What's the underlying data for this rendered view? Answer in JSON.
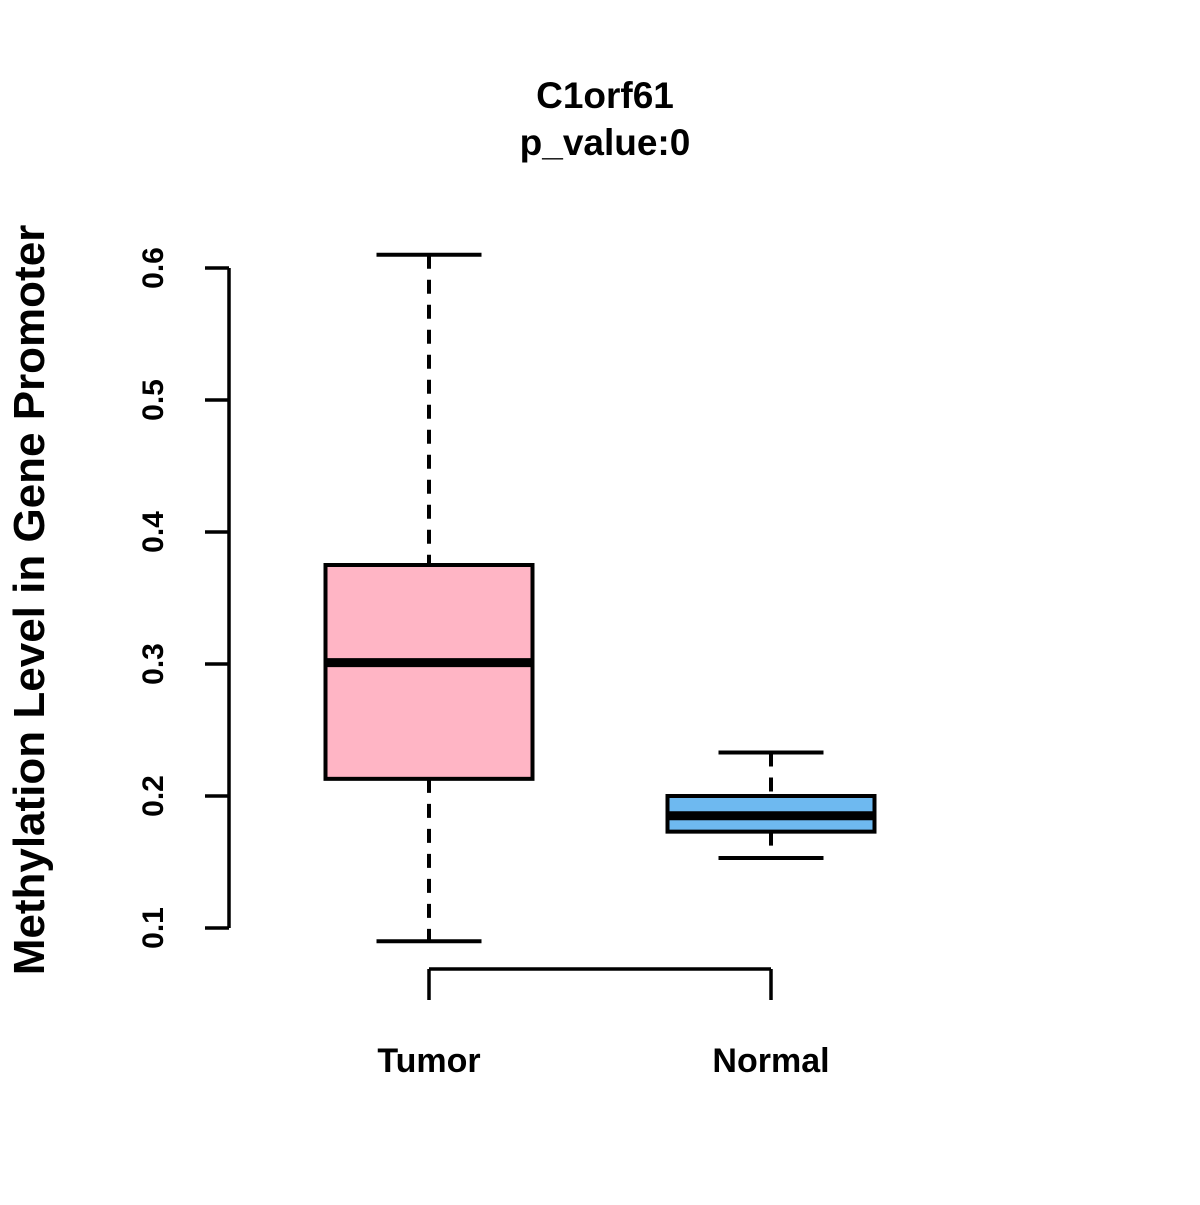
{
  "chart_data": {
    "type": "boxplot",
    "title": "C1orf61",
    "subtitle": "p_value:0",
    "ylabel": "Methylation Level in Gene Promoter",
    "xlabel": "",
    "ylim": [
      0.1,
      0.6
    ],
    "yticks": [
      0.1,
      0.2,
      0.3,
      0.4,
      0.5,
      0.6
    ],
    "ytick_labels": [
      "0.1",
      "0.2",
      "0.3",
      "0.4",
      "0.5",
      "0.6"
    ],
    "categories": [
      "Tumor",
      "Normal"
    ],
    "grid": "off",
    "legend": "none",
    "groups": [
      {
        "label": "Tumor",
        "color": "#FFB5C5",
        "whisker_low": 0.09,
        "q1": 0.213,
        "median": 0.301,
        "q3": 0.375,
        "whisker_high": 0.61
      },
      {
        "label": "Normal",
        "color": "#6EB9F0",
        "whisker_low": 0.153,
        "q1": 0.173,
        "median": 0.185,
        "q3": 0.2,
        "whisker_high": 0.233
      }
    ],
    "colors": {
      "tumor_box": "#FFB5C5",
      "normal_box": "#6EB9F0",
      "line": "#000000",
      "background": "#FFFFFF"
    }
  }
}
